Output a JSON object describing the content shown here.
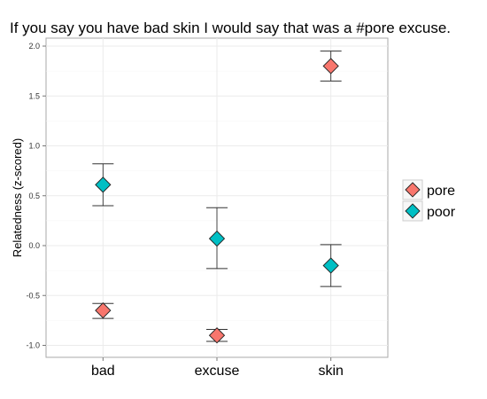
{
  "chart_data": {
    "type": "scatter",
    "title": "If you say you have bad skin I would say that was a #pore excuse.",
    "xlabel": "",
    "ylabel": "Relatedness (z-scored)",
    "categories": [
      "bad",
      "excuse",
      "skin"
    ],
    "ylim": [
      -1.12,
      2.08
    ],
    "yticks": [
      2.0,
      1.5,
      1.0,
      0.5,
      0.0,
      -0.5,
      -1.0
    ],
    "ytick_labels": [
      "2.0",
      "1.5",
      "1.0",
      "0.5",
      "0.0",
      "-0.5",
      "-1.0"
    ],
    "grid": true,
    "legend_position": "right",
    "series": [
      {
        "name": "pore",
        "color": "#F8766D",
        "values": [
          -0.65,
          -0.9,
          1.8
        ],
        "error_low": [
          -0.73,
          -0.96,
          1.65
        ],
        "error_high": [
          -0.58,
          -0.84,
          1.95
        ]
      },
      {
        "name": "poor",
        "color": "#00BFC4",
        "values": [
          0.61,
          0.07,
          -0.2
        ],
        "error_low": [
          0.4,
          -0.23,
          -0.41
        ],
        "error_high": [
          0.82,
          0.38,
          0.01
        ]
      }
    ]
  }
}
